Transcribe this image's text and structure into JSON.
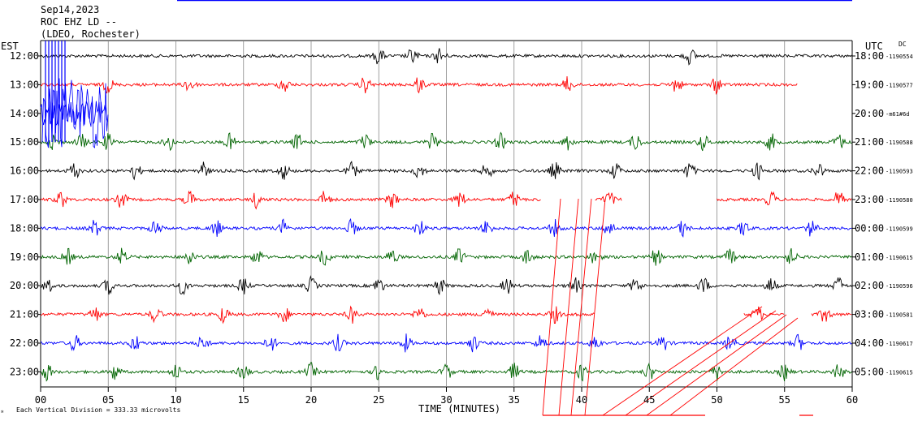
{
  "header": {
    "date": "Sep14,2023",
    "station": "ROC EHZ LD --",
    "location": "(LDEO, Rochester)"
  },
  "labels": {
    "left_zone": "EST",
    "right_zone": "UTC",
    "dc_label": "DC",
    "xlabel": "TIME (MINUTES)",
    "footer": "Each Vertical Division =  333.33 microvolts"
  },
  "chart_data": {
    "type": "line",
    "title": "ROC EHZ LD --",
    "xlabel": "TIME (MINUTES)",
    "xlim": [
      0,
      60
    ],
    "x_ticks": [
      "00",
      "05",
      "10",
      "15",
      "20",
      "25",
      "30",
      "35",
      "40",
      "45",
      "50",
      "55",
      "60"
    ],
    "rows": [
      {
        "est": "12:00",
        "utc": "18:00",
        "dc": "-1190554",
        "color": "#000000",
        "amp": 10,
        "active": [
          [
            0,
            60
          ]
        ],
        "events": [
          25,
          27.5,
          29.5,
          48
        ]
      },
      {
        "est": "13:00",
        "utc": "19:00",
        "dc": "-1190577",
        "color": "#ff0000",
        "amp": 10,
        "active": [
          [
            0,
            56
          ]
        ],
        "events": [
          5,
          11,
          18,
          24,
          28,
          39,
          47,
          50
        ]
      },
      {
        "est": "14:00",
        "utc": "20:00",
        "dc": "-m61#6d",
        "color": "#0000ff",
        "amp": 7,
        "active": [
          [
            0,
            5
          ]
        ],
        "events": [
          1,
          3
        ]
      },
      {
        "est": "15:00",
        "utc": "21:00",
        "dc": "-1190588",
        "color": "#006400",
        "amp": 10,
        "active": [
          [
            0,
            60
          ]
        ],
        "events": [
          1,
          3,
          5,
          9.5,
          14,
          19,
          24,
          29,
          34,
          39,
          44,
          49,
          54,
          59
        ]
      },
      {
        "est": "16:00",
        "utc": "22:00",
        "dc": "-1190593",
        "color": "#000000",
        "amp": 10,
        "active": [
          [
            0,
            60
          ]
        ],
        "events": [
          2.5,
          7,
          12,
          18,
          23,
          28,
          33,
          38,
          42.5,
          48,
          53,
          57.5
        ]
      },
      {
        "est": "17:00",
        "utc": "23:00",
        "dc": "-1190580",
        "color": "#ff0000",
        "amp": 10,
        "active": [
          [
            0,
            37
          ],
          [
            41,
            43
          ],
          [
            50,
            60
          ]
        ],
        "events": [
          1.5,
          6,
          11,
          16,
          21,
          26,
          31,
          35,
          42,
          54,
          59
        ]
      },
      {
        "est": "18:00",
        "utc": "00:00",
        "dc": "-1190599",
        "color": "#0000ff",
        "amp": 10,
        "active": [
          [
            0,
            60
          ]
        ],
        "events": [
          4,
          8.5,
          13,
          18,
          23,
          28,
          33,
          38,
          42,
          47.5,
          52,
          57
        ]
      },
      {
        "est": "19:00",
        "utc": "01:00",
        "dc": "-1190615",
        "color": "#006400",
        "amp": 10,
        "active": [
          [
            0,
            60
          ]
        ],
        "events": [
          2,
          6,
          11,
          16,
          21,
          26,
          31,
          36,
          41,
          45.5,
          51,
          55.5
        ]
      },
      {
        "est": "20:00",
        "utc": "02:00",
        "dc": "-1190596",
        "color": "#000000",
        "amp": 10,
        "active": [
          [
            0,
            60
          ]
        ],
        "events": [
          0.5,
          5,
          10.5,
          15,
          20,
          25,
          29.5,
          34.5,
          39.5,
          44,
          49,
          54,
          59
        ]
      },
      {
        "est": "21:00",
        "utc": "03:00",
        "dc": "-1190581",
        "color": "#ff0000",
        "amp": 10,
        "active": [
          [
            0,
            41
          ],
          [
            52,
            55
          ],
          [
            57,
            60
          ]
        ],
        "events": [
          4,
          8.5,
          13.5,
          18,
          23,
          28,
          33,
          38,
          53,
          58
        ]
      },
      {
        "est": "22:00",
        "utc": "04:00",
        "dc": "-1190617",
        "color": "#0000ff",
        "amp": 10,
        "active": [
          [
            0,
            60
          ]
        ],
        "events": [
          2.5,
          7,
          12,
          17,
          22,
          27,
          32,
          37,
          41,
          46,
          51,
          56
        ]
      },
      {
        "est": "23:00",
        "utc": "05:00",
        "dc": "-1190615",
        "color": "#006400",
        "amp": 10,
        "active": [
          [
            0,
            60
          ]
        ],
        "events": [
          0.5,
          5.5,
          10,
          15,
          20,
          25,
          30,
          35,
          40,
          45,
          50,
          55,
          59
        ]
      }
    ]
  }
}
